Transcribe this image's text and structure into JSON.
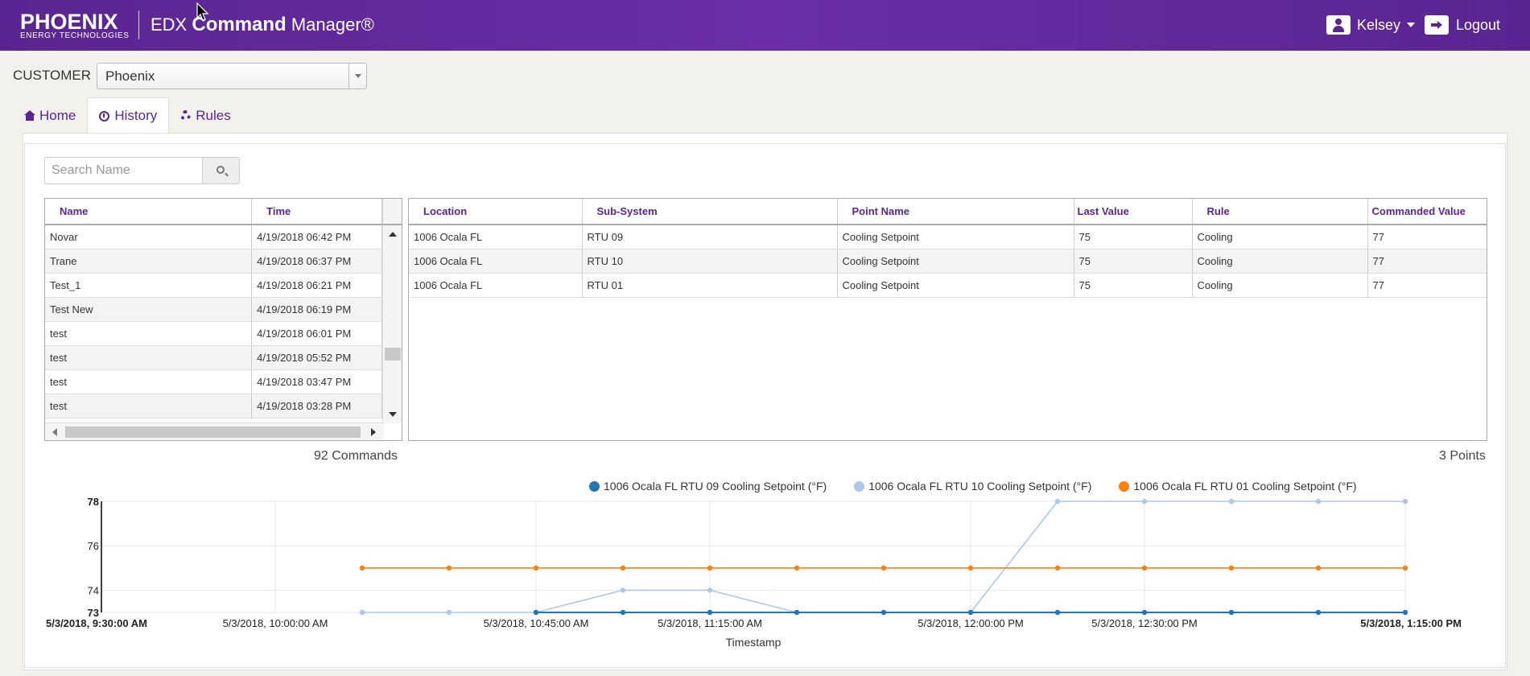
{
  "header": {
    "logo_main": "PHOENIX",
    "logo_sub": "ENERGY TECHNOLOGIES",
    "app_title_prefix": "EDX",
    "app_title_strong": "Command",
    "app_title_suffix": "Manager®",
    "user_name": "Kelsey",
    "logout_label": "Logout",
    "brand_color": "#5a2591"
  },
  "customer": {
    "label": "CUSTOMER",
    "selected": "Phoenix"
  },
  "tabs": [
    {
      "label": "Home",
      "icon": "home-icon"
    },
    {
      "label": "History",
      "icon": "clock-icon",
      "active": true
    },
    {
      "label": "Rules",
      "icon": "gear-icon"
    }
  ],
  "search": {
    "placeholder": "Search Name"
  },
  "commands_table": {
    "columns": [
      "Name",
      "Time"
    ],
    "rows": [
      [
        "Novar",
        "4/19/2018 06:42 PM"
      ],
      [
        "Trane",
        "4/19/2018 06:37 PM"
      ],
      [
        "Test_1",
        "4/19/2018 06:21 PM"
      ],
      [
        "Test New",
        "4/19/2018 06:19 PM"
      ],
      [
        "test",
        "4/19/2018 06:01 PM"
      ],
      [
        "test",
        "4/19/2018 05:52 PM"
      ],
      [
        "test",
        "4/19/2018 03:47 PM"
      ],
      [
        "test",
        "4/19/2018 03:28 PM"
      ]
    ],
    "count_label": "92 Commands"
  },
  "points_table": {
    "columns": [
      "Location",
      "Sub-System",
      "Point Name",
      "Last Value",
      "Rule",
      "Commanded Value"
    ],
    "rows": [
      [
        "1006 Ocala FL",
        "RTU 09",
        "Cooling Setpoint",
        "75",
        "Cooling",
        "77"
      ],
      [
        "1006 Ocala FL",
        "RTU 10",
        "Cooling Setpoint",
        "75",
        "Cooling",
        "77"
      ],
      [
        "1006 Ocala FL",
        "RTU 01",
        "Cooling Setpoint",
        "75",
        "Cooling",
        "77"
      ]
    ],
    "count_label": "3 Points"
  },
  "chart_data": {
    "type": "line",
    "xlabel": "Timestamp",
    "ylabel": "",
    "ylim": [
      73,
      78
    ],
    "y_ticks": [
      73,
      74,
      76,
      78
    ],
    "x_ticks": [
      "5/3/2018, 9:30:00 AM",
      "5/3/2018, 10:00:00 AM",
      "5/3/2018, 10:45:00 AM",
      "5/3/2018, 11:15:00 AM",
      "5/3/2018, 12:00:00 PM",
      "5/3/2018, 12:30:00 PM",
      "5/3/2018, 1:15:00 PM"
    ],
    "x_tick_minutes": [
      0,
      30,
      75,
      105,
      150,
      180,
      225
    ],
    "x_range_minutes": [
      0,
      225
    ],
    "x_points_minutes": [
      45,
      60,
      75,
      90,
      105,
      120,
      135,
      150,
      165,
      180,
      195,
      210,
      225
    ],
    "legend_position": "top",
    "series": [
      {
        "name": "1006 Ocala FL RTU 09 Cooling Setpoint (°F)",
        "color": "#1f77b4",
        "start_index": 2,
        "values": [
          73,
          73,
          73,
          73,
          73,
          73,
          73,
          73,
          73,
          73,
          73
        ]
      },
      {
        "name": "1006 Ocala FL RTU 10 Cooling Setpoint (°F)",
        "color": "#aec7e8",
        "start_index": 0,
        "values": [
          73,
          73,
          73,
          74,
          74,
          73,
          73,
          73,
          78,
          78,
          78,
          78,
          78
        ]
      },
      {
        "name": "1006 Ocala FL RTU 01 Cooling Setpoint (°F)",
        "color": "#ff7f0e",
        "start_index": 0,
        "values": [
          75,
          75,
          75,
          75,
          75,
          75,
          75,
          75,
          75,
          75,
          75,
          75,
          75
        ]
      }
    ]
  }
}
